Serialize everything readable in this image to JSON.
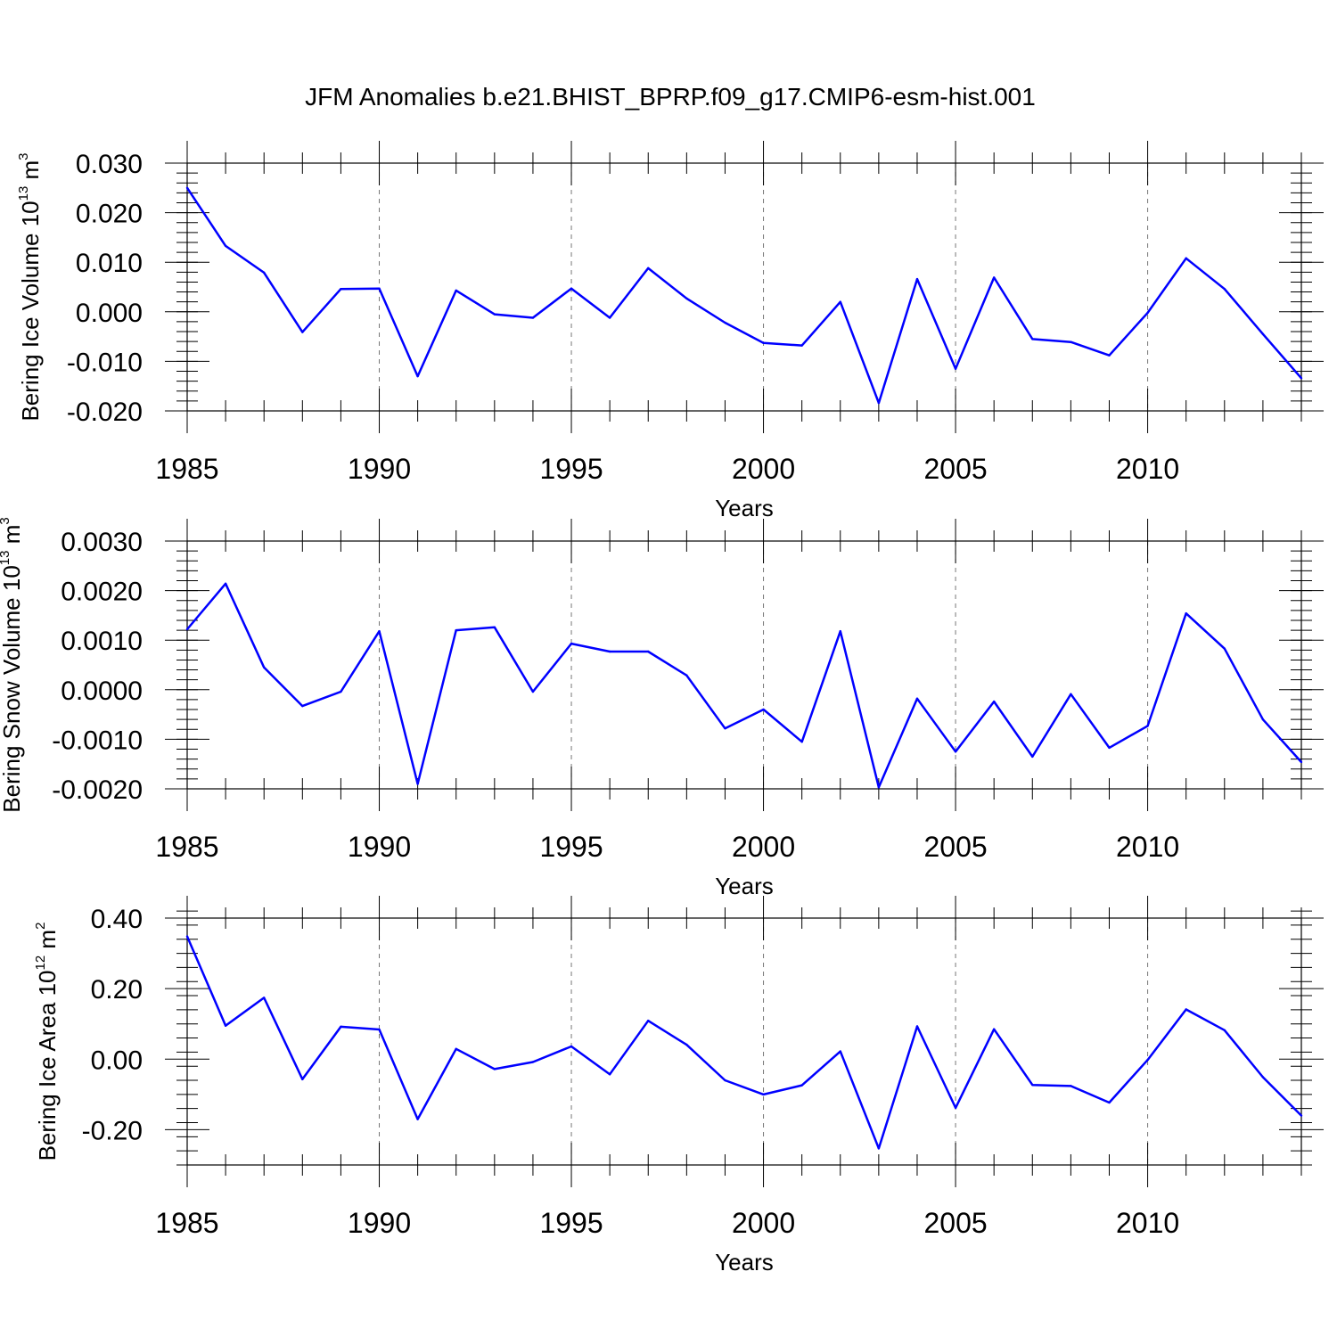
{
  "chart_data": [
    {
      "type": "line",
      "title": "JFM Anomalies b.e21.BHIST_BPRP.f09_g17.CMIP6-esm-hist.001",
      "xlabel": "Years",
      "ylabel": "Bering Ice Volume 10",
      "yunit_exp": "13",
      "yunit_tail": "m",
      "yunit_tail_exp": "3",
      "ylim": [
        -0.02,
        0.03
      ],
      "xlim": [
        1985,
        2014
      ],
      "yticks": [
        -0.02,
        -0.01,
        0.0,
        0.01,
        0.02,
        0.03
      ],
      "ytick_labels": [
        "-0.020",
        "-0.010",
        "0.000",
        "0.010",
        "0.020",
        "0.030"
      ],
      "xticks": [
        1985,
        1990,
        1995,
        2000,
        2005,
        2010
      ],
      "xtick_labels": [
        "1985",
        "1990",
        "1995",
        "2000",
        "2005",
        "2010"
      ],
      "line_color": "#0000ff",
      "series": [
        {
          "name": "Bering Ice Volume",
          "x": [
            1985,
            1986,
            1987,
            1988,
            1989,
            1990,
            1991,
            1992,
            1993,
            1994,
            1995,
            1996,
            1997,
            1998,
            1999,
            2000,
            2001,
            2002,
            2003,
            2004,
            2005,
            2006,
            2007,
            2008,
            2009,
            2010,
            2011,
            2012,
            2013,
            2014
          ],
          "values": [
            0.025,
            0.0133,
            0.0079,
            -0.0041,
            0.0046,
            0.0047,
            -0.013,
            0.0043,
            -0.0005,
            -0.0012,
            0.0047,
            -0.0012,
            0.0088,
            0.0027,
            -0.0022,
            -0.0063,
            -0.0068,
            0.002,
            -0.0184,
            0.0066,
            -0.0115,
            0.0069,
            -0.0055,
            -0.0061,
            -0.0088,
            -0.0002,
            0.0108,
            0.0046,
            -0.0045,
            -0.0134
          ]
        }
      ]
    },
    {
      "type": "line",
      "title": "",
      "xlabel": "Years",
      "ylabel": "Bering Snow Volume 10",
      "yunit_exp": "13",
      "yunit_tail": "m",
      "yunit_tail_exp": "3",
      "ylim": [
        -0.002,
        0.003
      ],
      "xlim": [
        1985,
        2014
      ],
      "yticks": [
        -0.002,
        -0.001,
        0.0,
        0.001,
        0.002,
        0.003
      ],
      "ytick_labels": [
        "-0.0020",
        "-0.0010",
        "0.0000",
        "0.0010",
        "0.0020",
        "0.0030"
      ],
      "xticks": [
        1985,
        1990,
        1995,
        2000,
        2005,
        2010
      ],
      "xtick_labels": [
        "1985",
        "1990",
        "1995",
        "2000",
        "2005",
        "2010"
      ],
      "line_color": "#0000ff",
      "series": [
        {
          "name": "Bering Snow Volume",
          "x": [
            1985,
            1986,
            1987,
            1988,
            1989,
            1990,
            1991,
            1992,
            1993,
            1994,
            1995,
            1996,
            1997,
            1998,
            1999,
            2000,
            2001,
            2002,
            2003,
            2004,
            2005,
            2006,
            2007,
            2008,
            2009,
            2010,
            2011,
            2012,
            2013,
            2014
          ],
          "values": [
            0.00122,
            0.00214,
            0.00045,
            -0.00033,
            -4e-05,
            0.00118,
            -0.0019,
            0.0012,
            0.00126,
            -4e-05,
            0.00093,
            0.00077,
            0.00077,
            0.00029,
            -0.00078,
            -0.0004,
            -0.00105,
            0.00118,
            -0.00197,
            -0.00018,
            -0.00125,
            -0.00024,
            -0.00135,
            -9e-05,
            -0.00117,
            -0.00073,
            0.00154,
            0.00083,
            -0.0006,
            -0.00146
          ]
        }
      ]
    },
    {
      "type": "line",
      "title": "",
      "xlabel": "Years",
      "ylabel": "Bering Ice Area 10",
      "yunit_exp": "12",
      "yunit_tail": "m",
      "yunit_tail_exp": "2",
      "ylim": [
        -0.3,
        0.4
      ],
      "xlim": [
        1985,
        2014
      ],
      "yticks": [
        -0.2,
        0.0,
        0.2,
        0.4
      ],
      "ytick_labels": [
        "-0.20",
        "0.00",
        "0.20",
        "0.40"
      ],
      "xticks": [
        1985,
        1990,
        1995,
        2000,
        2005,
        2010
      ],
      "xtick_labels": [
        "1985",
        "1990",
        "1995",
        "2000",
        "2005",
        "2010"
      ],
      "line_color": "#0000ff",
      "series": [
        {
          "name": "Bering Ice Area",
          "x": [
            1985,
            1986,
            1987,
            1988,
            1989,
            1990,
            1991,
            1992,
            1993,
            1994,
            1995,
            1996,
            1997,
            1998,
            1999,
            2000,
            2001,
            2002,
            2003,
            2004,
            2005,
            2006,
            2007,
            2008,
            2009,
            2010,
            2011,
            2012,
            2013,
            2014
          ],
          "values": [
            0.348,
            0.095,
            0.174,
            -0.057,
            0.092,
            0.084,
            -0.17,
            0.029,
            -0.028,
            -0.008,
            0.036,
            -0.043,
            0.109,
            0.041,
            -0.06,
            -0.1,
            -0.074,
            0.022,
            -0.253,
            0.093,
            -0.138,
            0.085,
            -0.073,
            -0.076,
            -0.123,
            -0.002,
            0.141,
            0.082,
            -0.051,
            -0.16
          ]
        }
      ]
    }
  ]
}
